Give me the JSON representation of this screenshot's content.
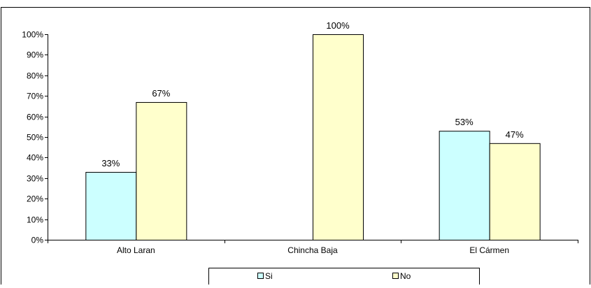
{
  "chart_data": {
    "type": "bar",
    "title": "",
    "xlabel": "",
    "ylabel": "",
    "categories": [
      "Alto Laran",
      "Chincha Baja",
      "El Cármen"
    ],
    "series": [
      {
        "name": "Si",
        "values": [
          33,
          0,
          53
        ],
        "labels": [
          "33%",
          "",
          "53%"
        ],
        "color": "#ccffff"
      },
      {
        "name": "No",
        "values": [
          67,
          100,
          47
        ],
        "labels": [
          "67%",
          "100%",
          "47%"
        ],
        "color": "#ffffcc"
      }
    ],
    "ylim": [
      0,
      100
    ],
    "yticks": [
      "0%",
      "10%",
      "20%",
      "30%",
      "40%",
      "50%",
      "60%",
      "70%",
      "80%",
      "90%",
      "100%"
    ],
    "grid": false,
    "legend_position": "bottom"
  }
}
